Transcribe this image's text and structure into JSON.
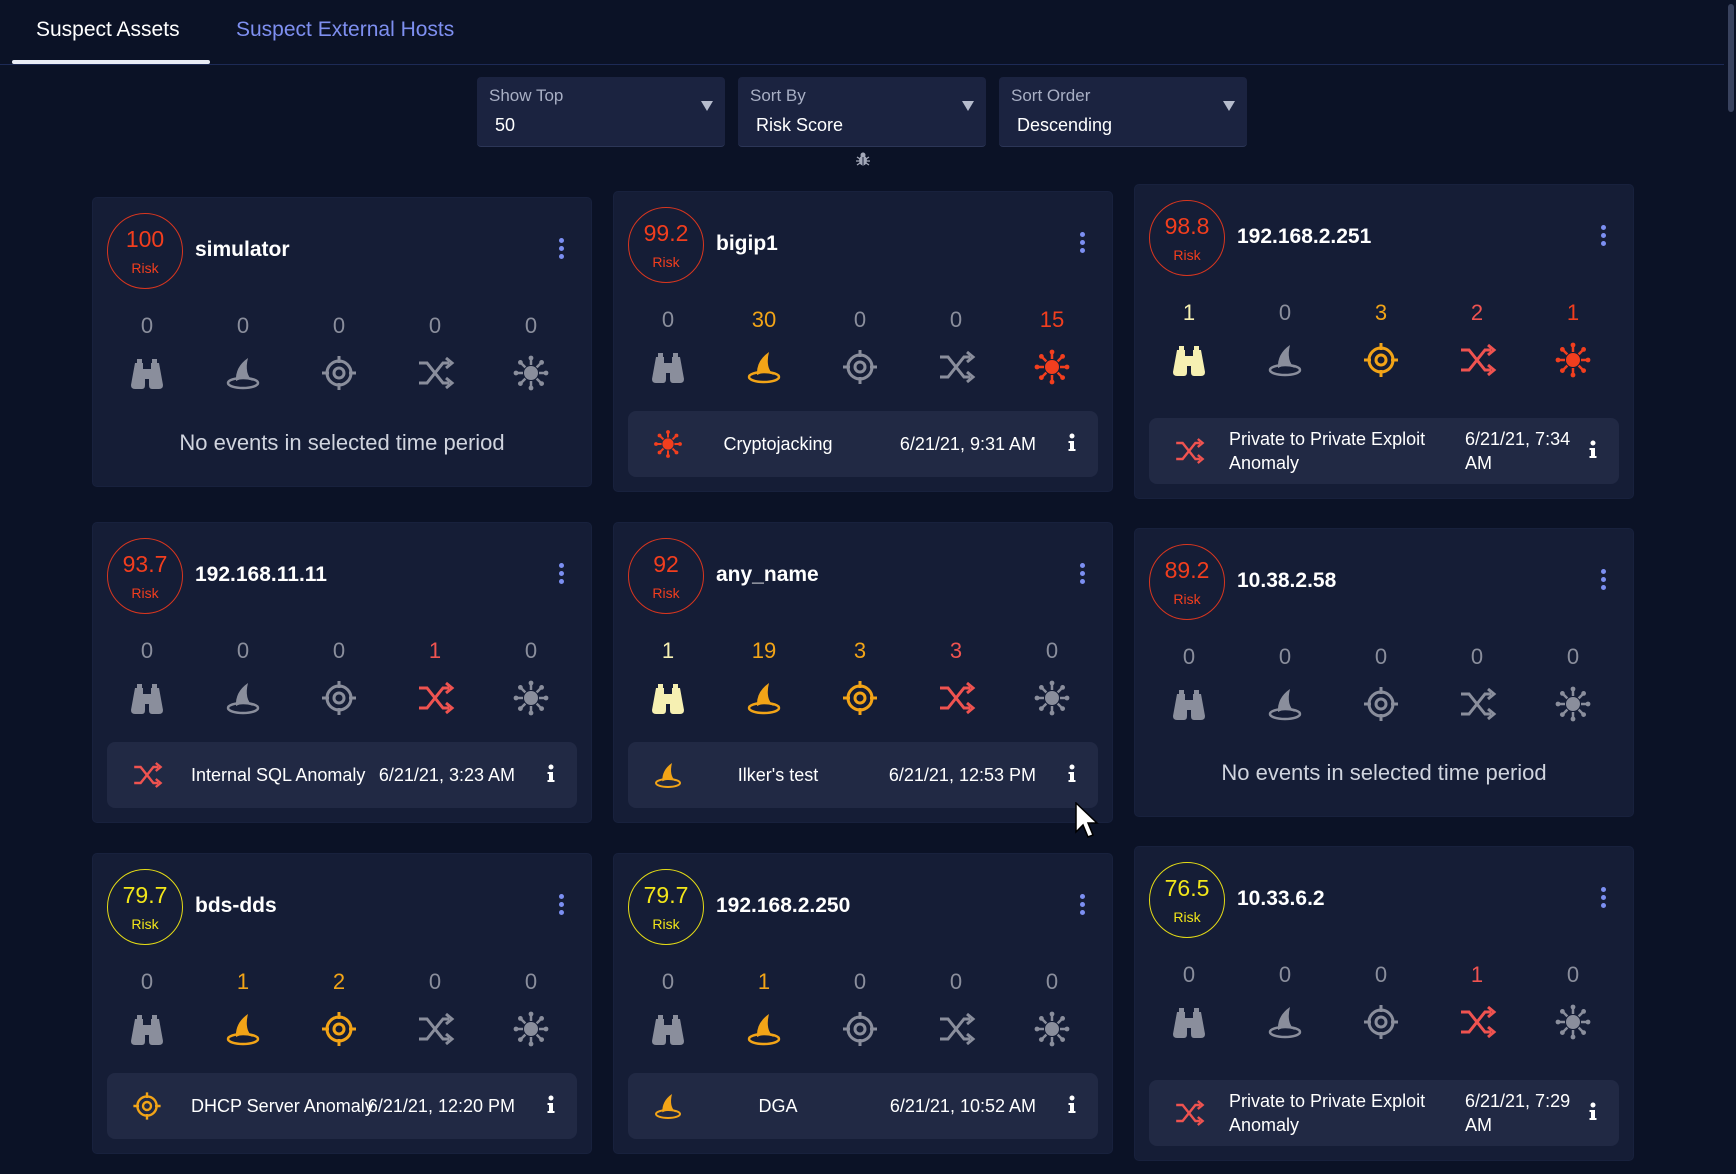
{
  "tabs": [
    {
      "label": "Suspect Assets",
      "active": true
    },
    {
      "label": "Suspect External Hosts",
      "active": false
    }
  ],
  "controls": {
    "show_top": {
      "label": "Show Top",
      "value": "50"
    },
    "sort_by": {
      "label": "Sort By",
      "value": "Risk Score"
    },
    "sort_order": {
      "label": "Sort Order",
      "value": "Descending"
    }
  },
  "colors": {
    "red": "#f23e1e",
    "yellow": "#f2e61a",
    "orange": "#f2a417",
    "pink": "#ef5350",
    "light_yellow": "#f6f0b2",
    "gray": "#8a8e9c",
    "accent": "#7c8ff2"
  },
  "metric_icons": [
    "binoculars-icon",
    "phishing-hook-icon",
    "target-icon",
    "shuffle-arrows-icon",
    "virus-burst-icon"
  ],
  "risk_label": "Risk",
  "empty_text": "No events in selected time period",
  "cards": [
    {
      "score": "100",
      "level": "red",
      "name": "simulator",
      "counts": [
        "0",
        "0",
        "0",
        "0",
        "0"
      ],
      "event": null
    },
    {
      "score": "99.2",
      "level": "red",
      "name": "bigip1",
      "counts": [
        "0",
        "30",
        "0",
        "0",
        "15"
      ],
      "event": {
        "icon": "virus-burst-icon",
        "name": "Cryptojacking",
        "time": "6/21/21, 9:31 AM"
      }
    },
    {
      "score": "98.8",
      "level": "red",
      "name": "192.168.2.251",
      "counts": [
        "1",
        "0",
        "3",
        "2",
        "1"
      ],
      "event": {
        "icon": "shuffle-arrows-icon",
        "name": "Private to Private Exploit Anomaly",
        "time": "6/21/21, 7:34 AM"
      }
    },
    {
      "score": "93.7",
      "level": "red",
      "name": "192.168.11.11",
      "counts": [
        "0",
        "0",
        "0",
        "1",
        "0"
      ],
      "event": {
        "icon": "shuffle-arrows-icon",
        "name": "Internal SQL Anomaly",
        "time": "6/21/21, 3:23 AM"
      }
    },
    {
      "score": "92",
      "level": "red",
      "name": "any_name",
      "counts": [
        "1",
        "19",
        "3",
        "3",
        "0"
      ],
      "event": {
        "icon": "phishing-hook-icon",
        "name": "Ilker's test",
        "time": "6/21/21, 12:53 PM"
      }
    },
    {
      "score": "89.2",
      "level": "red",
      "name": "10.38.2.58",
      "counts": [
        "0",
        "0",
        "0",
        "0",
        "0"
      ],
      "event": null
    },
    {
      "score": "79.7",
      "level": "yellow",
      "name": "bds-dds",
      "counts": [
        "0",
        "1",
        "2",
        "0",
        "0"
      ],
      "event": {
        "icon": "target-icon",
        "name": "DHCP Server Anomaly",
        "time": "6/21/21, 12:20 PM"
      }
    },
    {
      "score": "79.7",
      "level": "yellow",
      "name": "192.168.2.250",
      "counts": [
        "0",
        "1",
        "0",
        "0",
        "0"
      ],
      "event": {
        "icon": "phishing-hook-icon",
        "name": "DGA",
        "time": "6/21/21, 10:52 AM"
      }
    },
    {
      "score": "76.5",
      "level": "yellow",
      "name": "10.33.6.2",
      "counts": [
        "0",
        "0",
        "0",
        "1",
        "0"
      ],
      "event": {
        "icon": "shuffle-arrows-icon",
        "name": "Private to Private Exploit Anomaly",
        "time": "6/21/21, 7:29 AM"
      }
    }
  ]
}
